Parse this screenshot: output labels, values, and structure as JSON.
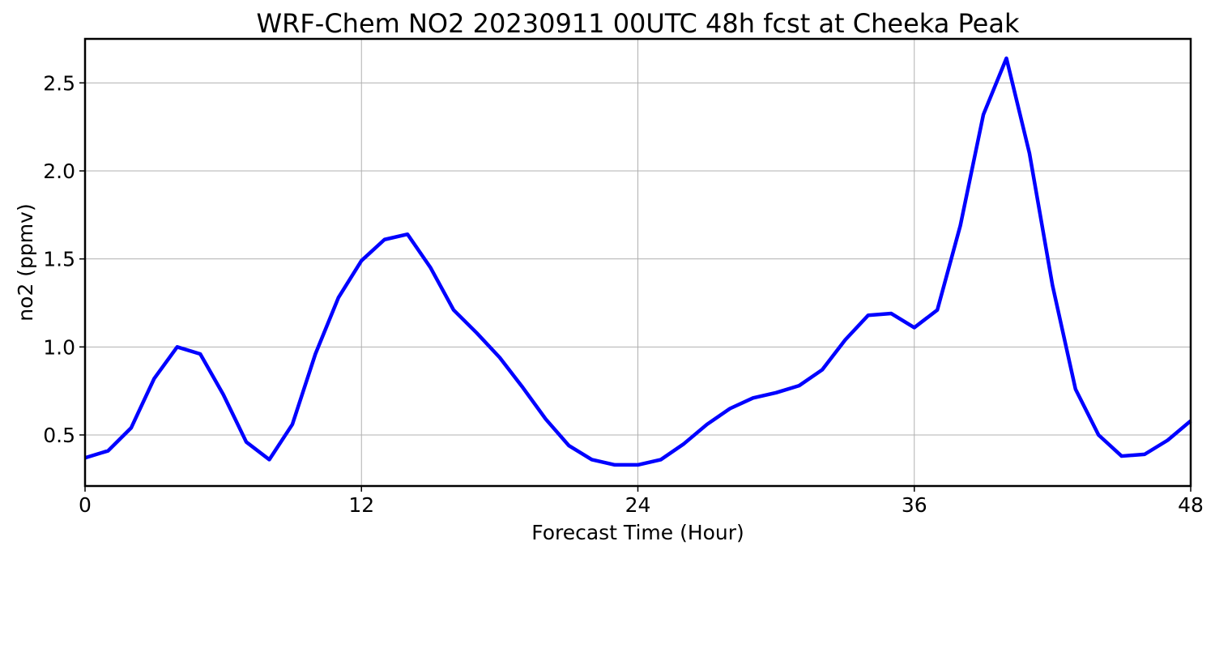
{
  "chart_data": {
    "type": "line",
    "title": "WRF-Chem NO2  20230911 00UTC 48h fcst at Cheeka Peak",
    "xlabel": "Forecast Time (Hour)",
    "ylabel": "no2  (ppmv)",
    "xlim": [
      0,
      48
    ],
    "ylim": [
      0.21,
      2.75
    ],
    "xticks": [
      0,
      12,
      24,
      36,
      48
    ],
    "xtick_labels": [
      "0",
      "12",
      "24",
      "36",
      "48"
    ],
    "yticks": [
      0.5,
      1.0,
      1.5,
      2.0,
      2.5
    ],
    "ytick_labels": [
      "0.5",
      "1.0",
      "1.5",
      "2.0",
      "2.5"
    ],
    "grid": true,
    "legend": "none",
    "series": [
      {
        "color": "#0000ff",
        "x": [
          0,
          1,
          2,
          3,
          4,
          5,
          6,
          7,
          8,
          9,
          10,
          11,
          12,
          13,
          14,
          15,
          16,
          17,
          18,
          19,
          20,
          21,
          22,
          23,
          24,
          25,
          26,
          27,
          28,
          29,
          30,
          31,
          32,
          33,
          34,
          35,
          36,
          37,
          38,
          39,
          40,
          41,
          42,
          43,
          44,
          45,
          46,
          47,
          48
        ],
        "y": [
          0.37,
          0.41,
          0.54,
          0.82,
          1.0,
          0.96,
          0.73,
          0.46,
          0.36,
          0.56,
          0.96,
          1.28,
          1.49,
          1.61,
          1.64,
          1.45,
          1.21,
          1.08,
          0.94,
          0.77,
          0.59,
          0.44,
          0.36,
          0.33,
          0.33,
          0.36,
          0.45,
          0.56,
          0.65,
          0.71,
          0.74,
          0.78,
          0.87,
          1.04,
          1.18,
          1.19,
          1.11,
          1.21,
          1.69,
          2.32,
          2.64,
          2.1,
          1.35,
          0.76,
          0.5,
          0.38,
          0.39,
          0.47,
          0.58
        ]
      }
    ]
  }
}
